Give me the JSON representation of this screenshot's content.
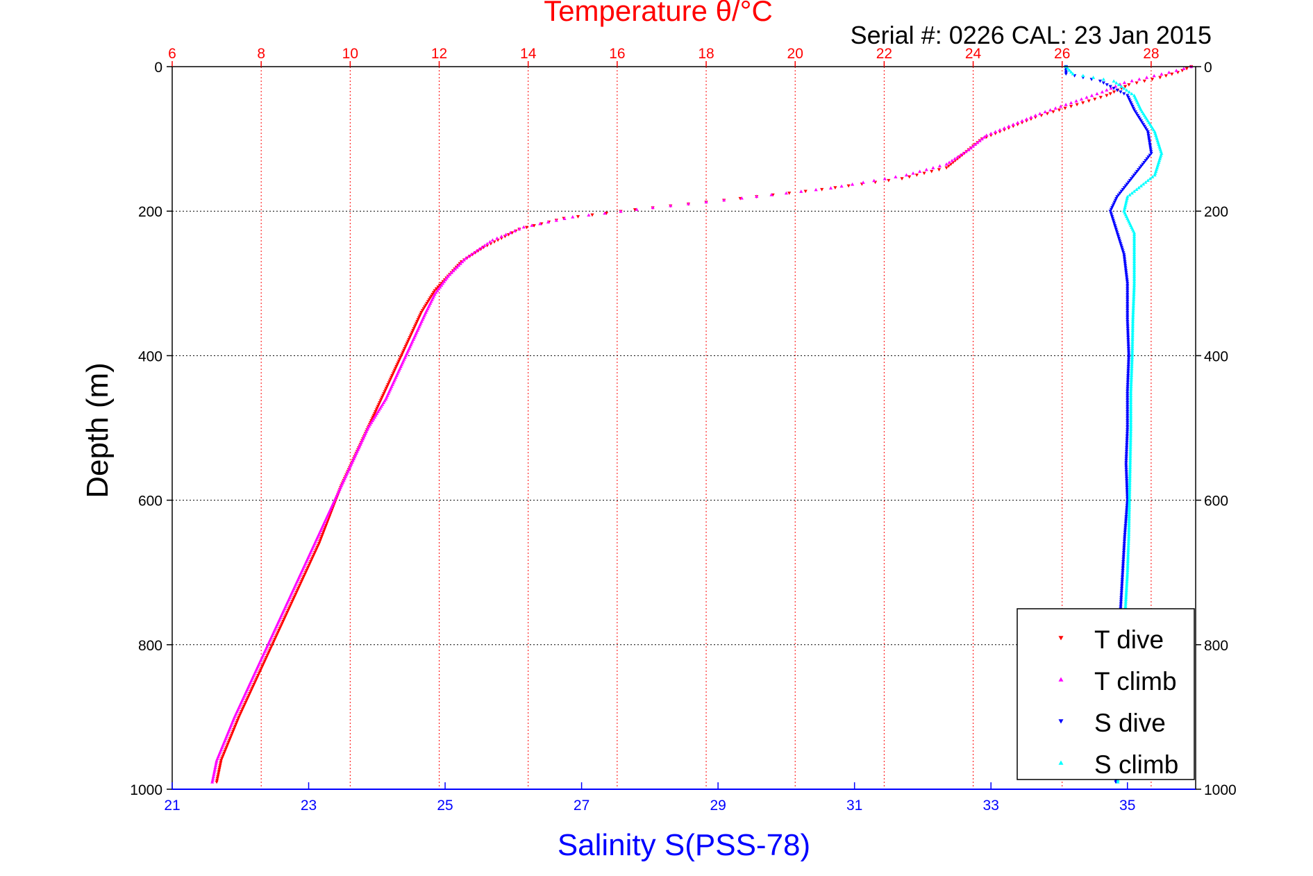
{
  "chart_data": {
    "type": "scatter",
    "title": "Temperature θ/°C",
    "subtitle": "Serial #: 0226  CAL: 23 Jan 2015",
    "xlabel": "Salinity S(PSS-78)",
    "ylabel": "Depth (m)",
    "x_top": {
      "label": "Temperature θ/°C",
      "ticks": [
        "6",
        "8",
        "10",
        "12",
        "14",
        "16",
        "18",
        "20",
        "22",
        "24",
        "26",
        "28"
      ],
      "lim": [
        6,
        29
      ],
      "color": "#ff0000"
    },
    "x_bottom": {
      "label": "Salinity S(PSS-78)",
      "ticks": [
        "21",
        "23",
        "25",
        "27",
        "29",
        "31",
        "33",
        "35"
      ],
      "lim": [
        21,
        36
      ],
      "color": "#0000ff"
    },
    "y": {
      "ticks": [
        "0",
        "200",
        "400",
        "600",
        "800",
        "1000"
      ],
      "lim": [
        0,
        1000
      ],
      "reversed": true
    },
    "grid": true,
    "legend_position": "bottom-right",
    "legend": [
      "T dive",
      "T climb",
      "S dive",
      "S climb"
    ],
    "series": [
      {
        "name": "T dive",
        "axis": "top",
        "color": "#ff0000",
        "marker": "triangle-down",
        "points": [
          [
            28.9,
            0
          ],
          [
            28.6,
            8
          ],
          [
            28.2,
            15
          ],
          [
            27.5,
            25
          ],
          [
            27.0,
            40
          ],
          [
            26.2,
            55
          ],
          [
            25.4,
            70
          ],
          [
            24.8,
            85
          ],
          [
            24.2,
            100
          ],
          [
            23.8,
            120
          ],
          [
            23.4,
            140
          ],
          [
            22.4,
            155
          ],
          [
            20.6,
            170
          ],
          [
            18.4,
            185
          ],
          [
            16.4,
            198
          ],
          [
            14.8,
            210
          ],
          [
            13.8,
            225
          ],
          [
            13.0,
            250
          ],
          [
            12.5,
            270
          ],
          [
            12.2,
            290
          ],
          [
            11.9,
            310
          ],
          [
            11.6,
            340
          ],
          [
            11.3,
            380
          ],
          [
            11.0,
            420
          ],
          [
            10.7,
            460
          ],
          [
            10.4,
            500
          ],
          [
            10.1,
            540
          ],
          [
            9.8,
            580
          ],
          [
            9.55,
            620
          ],
          [
            9.3,
            660
          ],
          [
            9.0,
            700
          ],
          [
            8.7,
            740
          ],
          [
            8.4,
            780
          ],
          [
            8.1,
            820
          ],
          [
            7.8,
            860
          ],
          [
            7.5,
            900
          ],
          [
            7.3,
            930
          ],
          [
            7.1,
            960
          ],
          [
            7.0,
            990
          ]
        ]
      },
      {
        "name": "T climb",
        "axis": "top",
        "color": "#ff00ff",
        "marker": "triangle-up",
        "points": [
          [
            28.9,
            0
          ],
          [
            28.4,
            8
          ],
          [
            27.9,
            15
          ],
          [
            27.4,
            22
          ],
          [
            26.9,
            35
          ],
          [
            26.2,
            50
          ],
          [
            25.5,
            65
          ],
          [
            24.9,
            80
          ],
          [
            24.3,
            95
          ],
          [
            23.9,
            115
          ],
          [
            23.4,
            135
          ],
          [
            22.5,
            150
          ],
          [
            20.8,
            168
          ],
          [
            18.8,
            182
          ],
          [
            16.8,
            195
          ],
          [
            15.0,
            208
          ],
          [
            13.9,
            222
          ],
          [
            13.2,
            240
          ],
          [
            12.6,
            265
          ],
          [
            12.2,
            290
          ],
          [
            11.9,
            315
          ],
          [
            11.7,
            340
          ],
          [
            11.4,
            380
          ],
          [
            11.1,
            420
          ],
          [
            10.8,
            460
          ],
          [
            10.4,
            500
          ],
          [
            10.1,
            540
          ],
          [
            9.8,
            580
          ],
          [
            9.5,
            620
          ],
          [
            9.2,
            660
          ],
          [
            8.9,
            700
          ],
          [
            8.6,
            740
          ],
          [
            8.3,
            780
          ],
          [
            8.0,
            820
          ],
          [
            7.7,
            860
          ],
          [
            7.4,
            900
          ],
          [
            7.2,
            930
          ],
          [
            7.0,
            960
          ],
          [
            6.9,
            990
          ]
        ]
      },
      {
        "name": "S dive",
        "axis": "bottom",
        "color": "#0000ff",
        "marker": "triangle-down",
        "points": [
          [
            34.1,
            0
          ],
          [
            34.1,
            10
          ],
          [
            34.6,
            20
          ],
          [
            35.0,
            40
          ],
          [
            35.1,
            60
          ],
          [
            35.3,
            90
          ],
          [
            35.35,
            120
          ],
          [
            35.1,
            150
          ],
          [
            34.85,
            180
          ],
          [
            34.75,
            200
          ],
          [
            34.85,
            230
          ],
          [
            34.95,
            260
          ],
          [
            35.0,
            300
          ],
          [
            35.0,
            350
          ],
          [
            35.02,
            400
          ],
          [
            35.0,
            450
          ],
          [
            35.0,
            500
          ],
          [
            34.98,
            550
          ],
          [
            35.0,
            600
          ],
          [
            34.96,
            650
          ],
          [
            34.93,
            700
          ],
          [
            34.9,
            750
          ],
          [
            34.88,
            800
          ],
          [
            34.86,
            850
          ],
          [
            34.85,
            900
          ],
          [
            34.84,
            950
          ],
          [
            34.83,
            990
          ]
        ]
      },
      {
        "name": "S climb",
        "axis": "bottom",
        "color": "#00ffff",
        "marker": "triangle-up",
        "points": [
          [
            34.1,
            0
          ],
          [
            34.2,
            10
          ],
          [
            34.8,
            20
          ],
          [
            35.1,
            40
          ],
          [
            35.2,
            60
          ],
          [
            35.4,
            90
          ],
          [
            35.5,
            120
          ],
          [
            35.4,
            150
          ],
          [
            35.0,
            180
          ],
          [
            34.95,
            200
          ],
          [
            35.1,
            230
          ],
          [
            35.1,
            260
          ],
          [
            35.1,
            300
          ],
          [
            35.08,
            350
          ],
          [
            35.07,
            400
          ],
          [
            35.05,
            450
          ],
          [
            35.05,
            500
          ],
          [
            35.04,
            550
          ],
          [
            35.03,
            600
          ],
          [
            35.02,
            650
          ],
          [
            35.0,
            700
          ],
          [
            34.97,
            750
          ],
          [
            34.95,
            800
          ],
          [
            34.93,
            850
          ],
          [
            34.9,
            900
          ],
          [
            34.88,
            950
          ],
          [
            34.86,
            990
          ]
        ]
      }
    ]
  }
}
